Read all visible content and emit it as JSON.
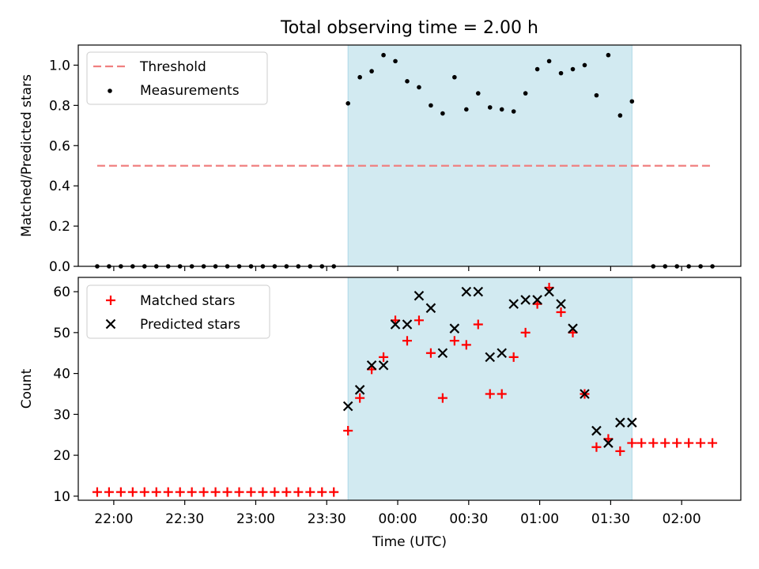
{
  "title": "Total observing time = 2.00 h",
  "colors": {
    "shade": "#add8e6",
    "threshold": "#f08080",
    "measurement": "#000000",
    "matched": "#ff0000",
    "predicted": "#000000"
  },
  "chart_data": [
    {
      "type": "scatter",
      "title": "Total observing time = 2.00 h",
      "ylabel": "Matched/Predicted stars",
      "xlabel": "",
      "xlim": [
        "21:45",
        "02:25"
      ],
      "ylim": [
        0,
        1.1
      ],
      "yticks": [
        0.0,
        0.2,
        0.4,
        0.6,
        0.8,
        1.0
      ],
      "ytick_labels": [
        "0.0",
        "0.2",
        "0.4",
        "0.6",
        "0.8",
        "1.0"
      ],
      "shaded_interval": [
        "23:39",
        "01:39"
      ],
      "legend_placement": "upper-left",
      "threshold": {
        "name": "Threshold",
        "value": 0.5,
        "x_range": [
          "21:53",
          "02:13"
        ],
        "style": "dashed"
      },
      "series": [
        {
          "name": "Measurements",
          "marker": "dot",
          "x": [
            "21:53",
            "21:58",
            "22:03",
            "22:08",
            "22:13",
            "22:18",
            "22:23",
            "22:28",
            "22:33",
            "22:38",
            "22:43",
            "22:48",
            "22:53",
            "22:58",
            "23:03",
            "23:08",
            "23:13",
            "23:18",
            "23:23",
            "23:28",
            "23:33",
            "23:39",
            "23:44",
            "23:49",
            "23:54",
            "23:59",
            "00:04",
            "00:09",
            "00:14",
            "00:19",
            "00:24",
            "00:29",
            "00:34",
            "00:39",
            "00:44",
            "00:49",
            "00:54",
            "00:59",
            "01:04",
            "01:09",
            "01:14",
            "01:19",
            "01:24",
            "01:29",
            "01:34",
            "01:39",
            "01:48",
            "01:53",
            "01:58",
            "02:03",
            "02:08",
            "02:13"
          ],
          "y": [
            0,
            0,
            0,
            0,
            0,
            0,
            0,
            0,
            0,
            0,
            0,
            0,
            0,
            0,
            0,
            0,
            0,
            0,
            0,
            0,
            0,
            0.81,
            0.94,
            0.97,
            1.05,
            1.02,
            0.92,
            0.89,
            0.8,
            0.76,
            0.94,
            0.78,
            0.86,
            0.79,
            0.78,
            0.77,
            0.86,
            0.98,
            1.02,
            0.96,
            0.98,
            1.0,
            0.85,
            1.05,
            0.75,
            0.82,
            0,
            0,
            0,
            0,
            0,
            0
          ]
        }
      ]
    },
    {
      "type": "scatter",
      "title": "",
      "ylabel": "Count",
      "xlabel": "Time (UTC)",
      "xlim": [
        "21:45",
        "02:25"
      ],
      "ylim": [
        9,
        63.5
      ],
      "yticks": [
        10,
        20,
        30,
        40,
        50,
        60
      ],
      "ytick_labels": [
        "10",
        "20",
        "30",
        "40",
        "50",
        "60"
      ],
      "xticks": [
        "22:00",
        "22:30",
        "23:00",
        "23:30",
        "00:00",
        "00:30",
        "01:00",
        "01:30",
        "02:00"
      ],
      "shaded_interval": [
        "23:39",
        "01:39"
      ],
      "legend_placement": "upper-left",
      "series": [
        {
          "name": "Matched stars",
          "marker": "plus",
          "x": [
            "21:53",
            "21:58",
            "22:03",
            "22:08",
            "22:13",
            "22:18",
            "22:23",
            "22:28",
            "22:33",
            "22:38",
            "22:43",
            "22:48",
            "22:53",
            "22:58",
            "23:03",
            "23:08",
            "23:13",
            "23:18",
            "23:23",
            "23:28",
            "23:33",
            "23:39",
            "23:44",
            "23:49",
            "23:54",
            "23:59",
            "00:04",
            "00:09",
            "00:14",
            "00:19",
            "00:24",
            "00:29",
            "00:34",
            "00:39",
            "00:44",
            "00:49",
            "00:54",
            "00:59",
            "01:04",
            "01:09",
            "01:14",
            "01:19",
            "01:24",
            "01:29",
            "01:34",
            "01:39",
            "01:43",
            "01:48",
            "01:53",
            "01:58",
            "02:03",
            "02:08",
            "02:13"
          ],
          "y": [
            11,
            11,
            11,
            11,
            11,
            11,
            11,
            11,
            11,
            11,
            11,
            11,
            11,
            11,
            11,
            11,
            11,
            11,
            11,
            11,
            11,
            26,
            34,
            41,
            44,
            53,
            48,
            53,
            45,
            34,
            48,
            47,
            52,
            35,
            35,
            44,
            50,
            57,
            61,
            55,
            50,
            35,
            22,
            24,
            21,
            23,
            23,
            23,
            23,
            23,
            23,
            23,
            23
          ]
        },
        {
          "name": "Predicted stars",
          "marker": "x",
          "x": [
            "23:39",
            "23:44",
            "23:49",
            "23:54",
            "23:59",
            "00:04",
            "00:09",
            "00:14",
            "00:19",
            "00:24",
            "00:29",
            "00:34",
            "00:39",
            "00:44",
            "00:49",
            "00:54",
            "00:59",
            "01:04",
            "01:09",
            "01:14",
            "01:19",
            "01:24",
            "01:29",
            "01:34",
            "01:39"
          ],
          "y": [
            32,
            36,
            42,
            42,
            52,
            52,
            59,
            56,
            45,
            51,
            60,
            60,
            44,
            45,
            57,
            58,
            58,
            60,
            57,
            51,
            35,
            26,
            23,
            28,
            28
          ]
        }
      ]
    }
  ]
}
